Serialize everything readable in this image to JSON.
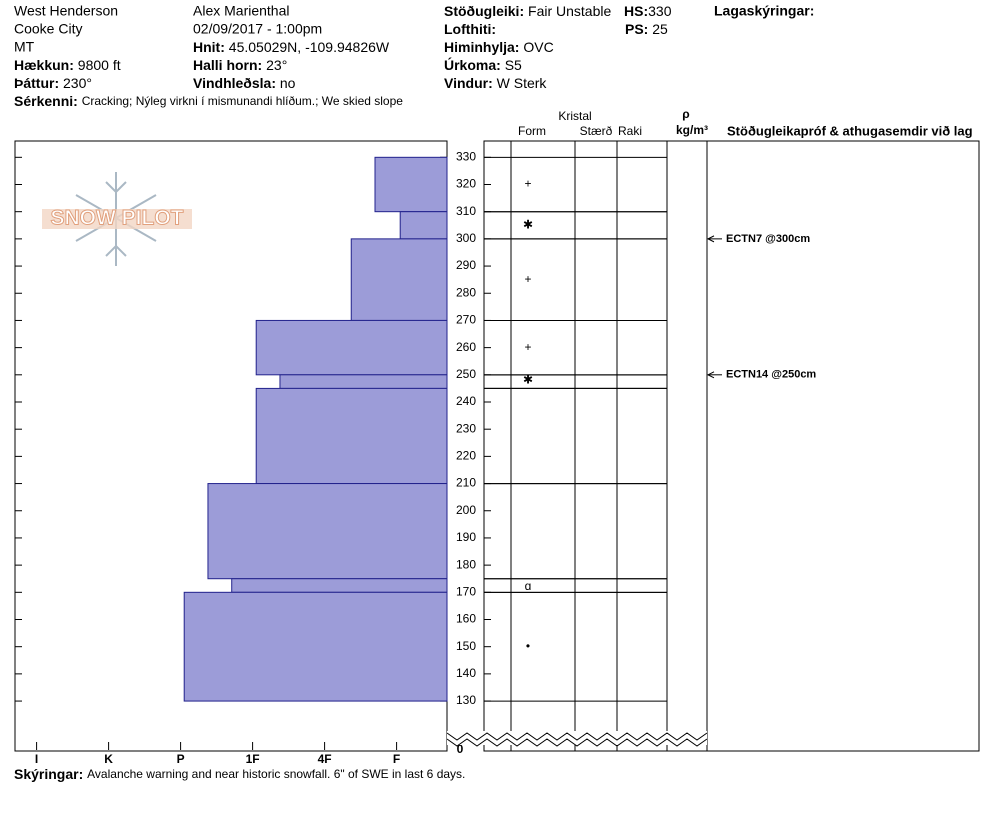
{
  "header": {
    "location": "West Henderson",
    "city": "Cooke City",
    "state": "MT",
    "elevation": {
      "label": "Hækkun:",
      "value": "9800 ft"
    },
    "aspect": {
      "label": "Þáttur:",
      "value": "230°"
    },
    "observer": "Alex Marienthal",
    "datetime": "02/09/2017 - 1:00pm",
    "coords": {
      "label": "Hnit:",
      "value": "45.05029N, -109.94826W"
    },
    "slope": {
      "label": "Halli horn:",
      "value": "23°"
    },
    "wind_loading": {
      "label": "Vindhleðsla:",
      "value": "no"
    },
    "stability": {
      "label": "Stöðugleiki:",
      "value": "Fair Unstable"
    },
    "hs": {
      "label": "HS:",
      "value": 330
    },
    "ps": {
      "label": "PS:",
      "value": 25
    },
    "air_temp": {
      "label": "Lofthiti:"
    },
    "sky": {
      "label": "Himinhylja:",
      "value": "OVC"
    },
    "precip": {
      "label": "Úrkoma:",
      "value": "S5"
    },
    "wind": {
      "label": "Vindur:",
      "value": "W Sterk"
    },
    "layer_notes": {
      "label": "Lagaskýringar:"
    },
    "features": {
      "label": "Sérkenni:",
      "value": "Cracking;  Nýleg virkni í mismunandi hlíðum.;  We skied slope"
    },
    "notes": {
      "label": "Skýringar:",
      "value": "Avalanche warning and near historic snowfall. 6\" of SWE in last 6 days."
    },
    "logo": "SNOW PILOT"
  },
  "columns": {
    "crystal": "Kristal",
    "form": "Form",
    "size": "Stærð",
    "moisture": "Raki",
    "density": "ρ",
    "density_unit": "kg/m³",
    "tests": "Stöðugleikapróf & athugasemdir við lag"
  },
  "chart_data": {
    "type": "snowprofile",
    "fill": "#9c9cd8",
    "stroke": "#22228c",
    "xlim": [
      0.3,
      6.3
    ],
    "xticks": [
      {
        "value": 1,
        "label": "F"
      },
      {
        "value": 2,
        "label": "4F"
      },
      {
        "value": 3,
        "label": "1F"
      },
      {
        "value": 4,
        "label": "P"
      },
      {
        "value": 5,
        "label": "K"
      },
      {
        "value": 6,
        "label": "I"
      }
    ],
    "ylim": [
      112,
      336
    ],
    "yticks": [
      130,
      140,
      150,
      160,
      170,
      180,
      190,
      200,
      210,
      220,
      230,
      240,
      250,
      260,
      270,
      280,
      290,
      300,
      310,
      320,
      330
    ],
    "axis_break": 0,
    "layers": [
      {
        "top": 330,
        "bottom": 310,
        "hardness": 1.3
      },
      {
        "top": 310,
        "bottom": 300,
        "hardness": 0.95
      },
      {
        "top": 300,
        "bottom": 270,
        "hardness": 1.63
      },
      {
        "top": 270,
        "bottom": 250,
        "hardness": 2.95
      },
      {
        "top": 250,
        "bottom": 245,
        "hardness": 2.62
      },
      {
        "top": 245,
        "bottom": 210,
        "hardness": 2.95
      },
      {
        "top": 210,
        "bottom": 175,
        "hardness": 3.62
      },
      {
        "top": 175,
        "bottom": 170,
        "hardness": 3.29
      },
      {
        "top": 170,
        "bottom": 130,
        "hardness": 3.95
      }
    ],
    "crystal_forms": {
      "heights": [
        320,
        305,
        285,
        260,
        248,
        172,
        150
      ],
      "symbols": [
        "+",
        "✱",
        "+",
        "+",
        "✱",
        "ɑ",
        "•"
      ]
    },
    "tests": [
      {
        "height": 300,
        "label": "ECTN7 @300cm"
      },
      {
        "height": 250,
        "label": "ECTN14 @250cm"
      }
    ]
  }
}
